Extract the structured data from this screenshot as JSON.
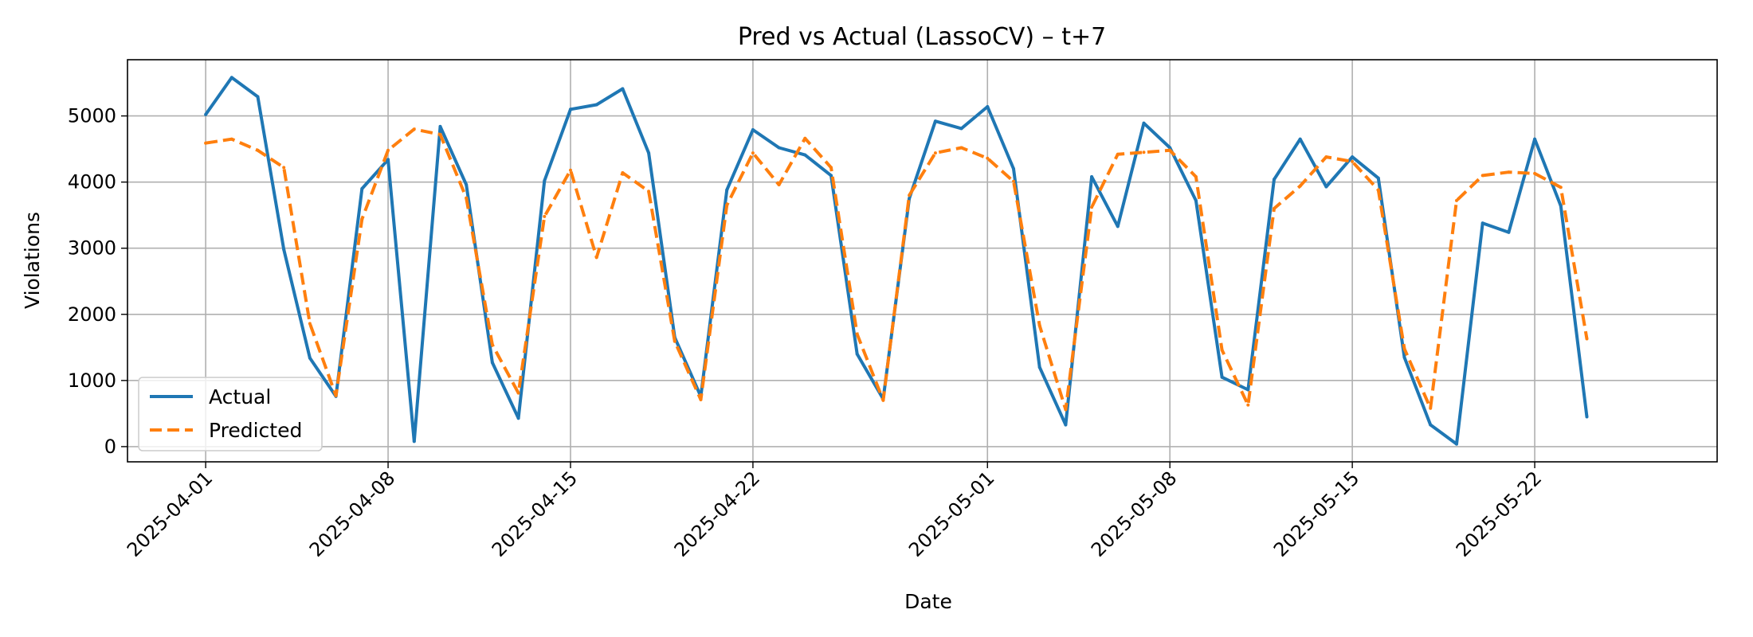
{
  "chart_data": {
    "type": "line",
    "title": "Pred vs Actual (LassoCV) – t+7",
    "xlabel": "Date",
    "ylabel": "Violations",
    "x_ticks": [
      "2025-04-01",
      "2025-04-08",
      "2025-04-15",
      "2025-04-22",
      "2025-05-01",
      "2025-05-08",
      "2025-05-15",
      "2025-05-22"
    ],
    "y_ticks": [
      0,
      1000,
      2000,
      3000,
      4000,
      5000
    ],
    "xlim": [
      "2025-03-29",
      "2025-05-29"
    ],
    "ylim": [
      -230,
      5850
    ],
    "grid": true,
    "legend_position": "lower-left",
    "x": [
      "2025-04-01",
      "2025-04-02",
      "2025-04-03",
      "2025-04-04",
      "2025-04-05",
      "2025-04-06",
      "2025-04-07",
      "2025-04-08",
      "2025-04-09",
      "2025-04-10",
      "2025-04-11",
      "2025-04-12",
      "2025-04-13",
      "2025-04-14",
      "2025-04-15",
      "2025-04-16",
      "2025-04-17",
      "2025-04-18",
      "2025-04-19",
      "2025-04-20",
      "2025-04-21",
      "2025-04-22",
      "2025-04-23",
      "2025-04-24",
      "2025-04-25",
      "2025-04-26",
      "2025-04-27",
      "2025-04-28",
      "2025-04-29",
      "2025-04-30",
      "2025-05-01",
      "2025-05-02",
      "2025-05-03",
      "2025-05-04",
      "2025-05-05",
      "2025-05-06",
      "2025-05-07",
      "2025-05-08",
      "2025-05-09",
      "2025-05-10",
      "2025-05-11",
      "2025-05-12",
      "2025-05-13",
      "2025-05-14",
      "2025-05-15",
      "2025-05-16",
      "2025-05-17",
      "2025-05-18",
      "2025-05-19",
      "2025-05-20",
      "2025-05-21",
      "2025-05-22",
      "2025-05-23",
      "2025-05-24"
    ],
    "series": [
      {
        "name": "Actual",
        "color": "#1f77b4",
        "style": "solid",
        "values": [
          5020,
          5580,
          5290,
          2980,
          1340,
          760,
          3900,
          4340,
          80,
          4840,
          3960,
          1270,
          430,
          4020,
          5100,
          5170,
          5410,
          4440,
          1650,
          760,
          3880,
          4790,
          4520,
          4410,
          4100,
          1400,
          720,
          3750,
          4920,
          4810,
          5140,
          4200,
          1200,
          330,
          4080,
          3330,
          4890,
          4520,
          3720,
          1050,
          860,
          4040,
          4650,
          3930,
          4380,
          4060,
          1350,
          330,
          40,
          3380,
          3240,
          4650,
          3640,
          450
        ]
      },
      {
        "name": "Predicted",
        "color": "#ff7f0e",
        "style": "dashed",
        "values": [
          4590,
          4650,
          4480,
          4220,
          1860,
          770,
          3440,
          4480,
          4800,
          4720,
          3760,
          1540,
          810,
          3480,
          4180,
          2860,
          4140,
          3860,
          1590,
          710,
          3650,
          4440,
          3960,
          4660,
          4220,
          1700,
          700,
          3800,
          4440,
          4520,
          4360,
          4010,
          1830,
          560,
          3620,
          4420,
          4450,
          4480,
          4080,
          1460,
          630,
          3600,
          3940,
          4380,
          4310,
          3880,
          1480,
          580,
          3720,
          4100,
          4150,
          4130,
          3920,
          1630
        ]
      }
    ]
  }
}
